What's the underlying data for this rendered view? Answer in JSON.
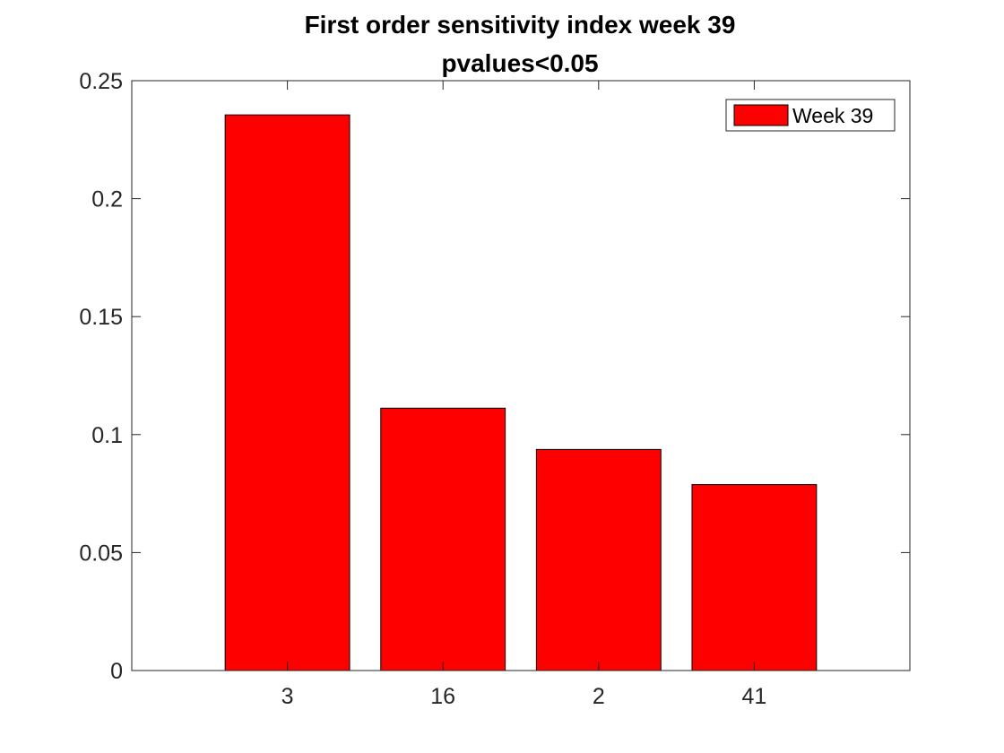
{
  "chart_data": {
    "type": "bar",
    "title": "First order sensitivity index week 39",
    "subtitle": "pvalues<0.05",
    "categories": [
      "3",
      "16",
      "2",
      "41"
    ],
    "series": [
      {
        "name": "Week 39",
        "values": [
          0.2355,
          0.1112,
          0.0937,
          0.0788
        ],
        "color": "#ff0000"
      }
    ],
    "xlim": [
      0,
      5
    ],
    "ylim": [
      0,
      0.25
    ],
    "yticks": [
      0,
      0.05,
      0.1,
      0.15,
      0.2,
      0.25
    ],
    "ytick_labels": [
      "0",
      "0.05",
      "0.1",
      "0.15",
      "0.2",
      "0.25"
    ],
    "grid": false,
    "legend_position": "top-right",
    "bar_edge_color": "#000000"
  }
}
